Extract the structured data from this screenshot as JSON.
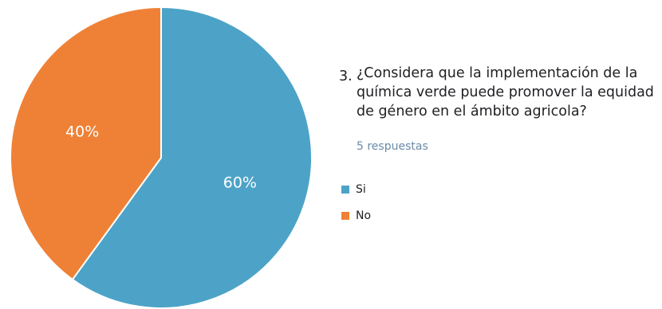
{
  "question": {
    "number": "3.",
    "text": "¿Considera que la implementación de la química verde puede promover la equidad de género en el ámbito agricola?",
    "responses": "5 respuestas"
  },
  "chart_data": {
    "type": "pie",
    "categories": [
      "Si",
      "No"
    ],
    "values": [
      60,
      40
    ],
    "labels": [
      "60%",
      "40%"
    ],
    "colors": [
      "#4da3c7",
      "#ef8136"
    ],
    "legend_position": "right"
  }
}
